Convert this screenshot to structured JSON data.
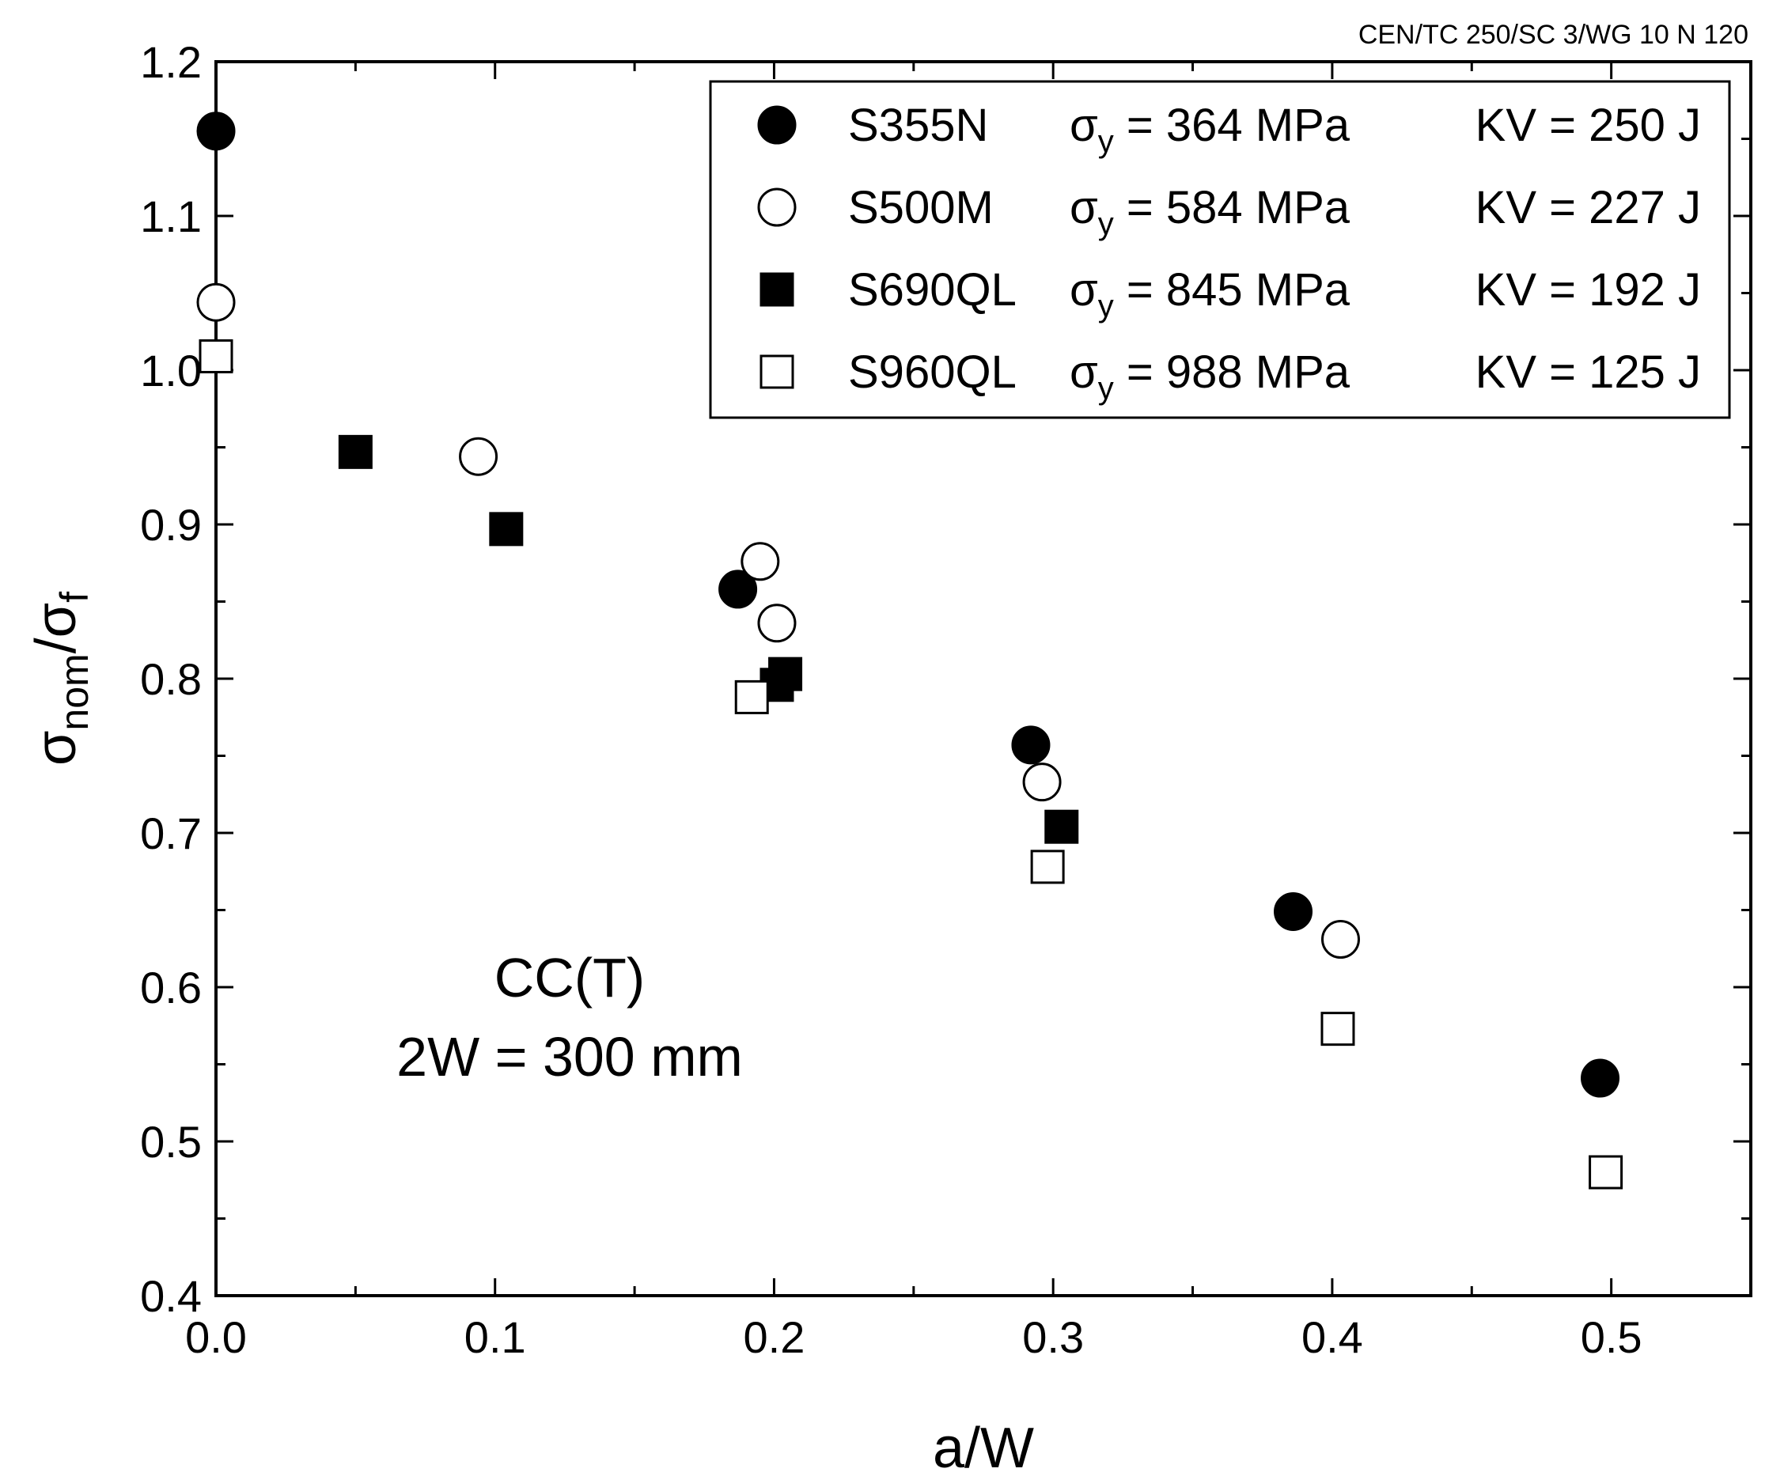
{
  "document_ref": "CEN/TC 250/SC 3/WG 10 N 120",
  "chart_data": {
    "type": "scatter",
    "xlabel": "a/W",
    "ylabel": {
      "main": "σ",
      "sub1": "nom",
      "slash": "/",
      "main2": "σ",
      "sub2": "f"
    },
    "xlim": [
      0.0,
      0.55
    ],
    "ylim": [
      0.4,
      1.2
    ],
    "xticks": [
      0.0,
      0.1,
      0.2,
      0.3,
      0.4,
      0.5
    ],
    "xtick_labels": [
      "0.0",
      "0.1",
      "0.2",
      "0.3",
      "0.4",
      "0.5"
    ],
    "yticks": [
      0.4,
      0.5,
      0.6,
      0.7,
      0.8,
      0.9,
      1.0,
      1.1,
      1.2
    ],
    "ytick_labels": [
      "0.4",
      "0.5",
      "0.6",
      "0.7",
      "0.8",
      "0.9",
      "1.0",
      "1.1",
      "1.2"
    ],
    "grid": false,
    "legend_position": "top-right",
    "annotation": [
      "CC(T)",
      "2W = 300 mm"
    ],
    "series": [
      {
        "name": "S355N",
        "marker": "circle",
        "filled": true,
        "sigma_label": "σ",
        "sigma_sub": "y",
        "sigma_value": "= 364 MPa",
        "kv": "KV = 250 J",
        "points": [
          [
            0.0,
            1.155
          ],
          [
            0.187,
            0.858
          ],
          [
            0.292,
            0.757
          ],
          [
            0.386,
            0.649
          ],
          [
            0.496,
            0.541
          ]
        ]
      },
      {
        "name": "S500M",
        "marker": "circle",
        "filled": false,
        "sigma_label": "σ",
        "sigma_sub": "y",
        "sigma_value": "= 584 MPa",
        "kv": "KV = 227 J",
        "points": [
          [
            0.0,
            1.044
          ],
          [
            0.094,
            0.944
          ],
          [
            0.195,
            0.876
          ],
          [
            0.201,
            0.836
          ],
          [
            0.296,
            0.733
          ],
          [
            0.403,
            0.631
          ]
        ]
      },
      {
        "name": "S690QL",
        "marker": "square",
        "filled": true,
        "sigma_label": "σ",
        "sigma_sub": "y",
        "sigma_value": "= 845 MPa",
        "kv": "KV = 192 J",
        "points": [
          [
            0.05,
            0.947
          ],
          [
            0.104,
            0.897
          ],
          [
            0.201,
            0.796
          ],
          [
            0.204,
            0.803
          ],
          [
            0.303,
            0.704
          ]
        ]
      },
      {
        "name": "S960QL",
        "marker": "square",
        "filled": false,
        "sigma_label": "σ",
        "sigma_sub": "y",
        "sigma_value": "= 988 MPa",
        "kv": "KV = 125 J",
        "points": [
          [
            0.0,
            1.009
          ],
          [
            0.192,
            0.788
          ],
          [
            0.298,
            0.678
          ],
          [
            0.402,
            0.573
          ],
          [
            0.498,
            0.48
          ]
        ]
      }
    ]
  }
}
